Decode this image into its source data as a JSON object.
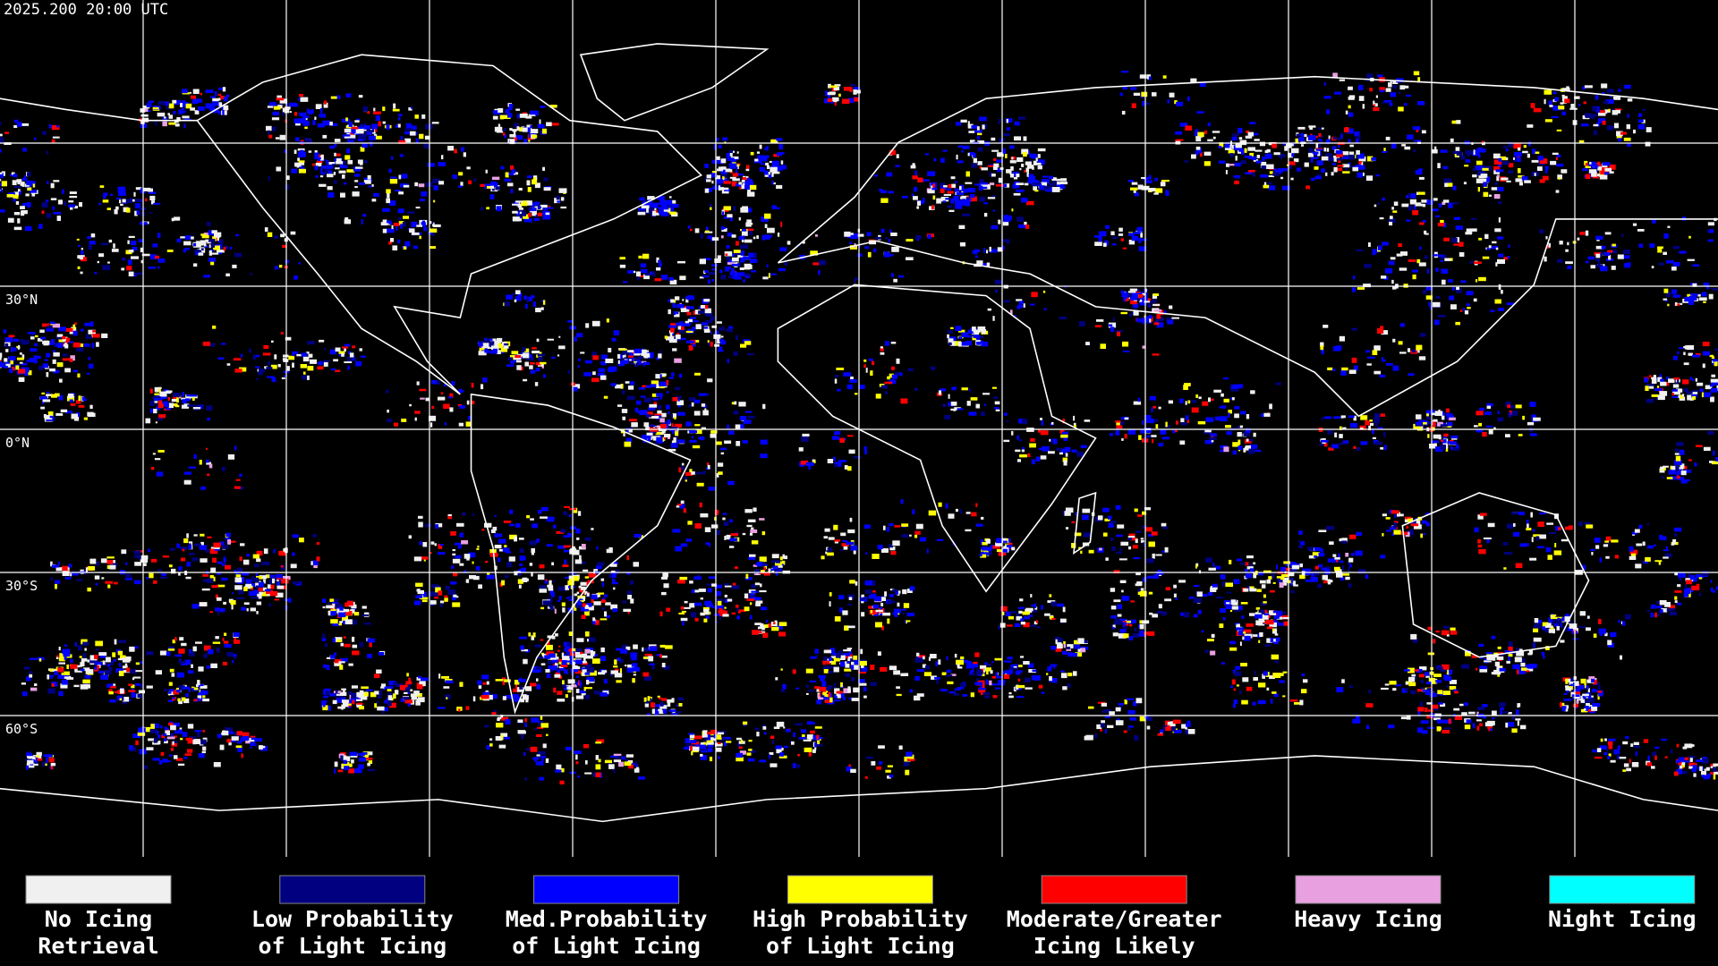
{
  "header": {
    "timestamp": "2025.200 20:00 UTC"
  },
  "map": {
    "latitude_labels": [
      "30°N",
      "0°N",
      "30°S",
      "60°S"
    ]
  },
  "legend": [
    {
      "label": [
        "No Icing",
        "Retrieval"
      ],
      "color": "#f0f0f0"
    },
    {
      "label": [
        "Low Probability",
        "of Light Icing"
      ],
      "color": "#000080"
    },
    {
      "label": [
        "Med.Probability",
        "of Light Icing"
      ],
      "color": "#0000ff"
    },
    {
      "label": [
        "High Probability",
        "of Light Icing"
      ],
      "color": "#ffff00"
    },
    {
      "label": [
        "Moderate/Greater",
        "Icing Likely"
      ],
      "color": "#ff0000"
    },
    {
      "label": [
        "Heavy Icing"
      ],
      "color": "#e8a0e0"
    },
    {
      "label": [
        "Night Icing"
      ],
      "color": "#00ffff"
    }
  ]
}
